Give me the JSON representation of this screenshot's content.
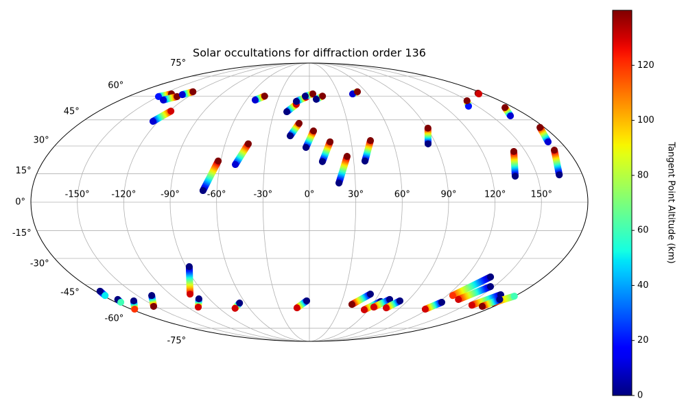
{
  "chart_data": {
    "type": "scatter",
    "projection": "mollweide",
    "title": "Solar occultations for diffraction order 136",
    "xticks": [
      {
        "value": -150,
        "label": "-150°"
      },
      {
        "value": -120,
        "label": "-120°"
      },
      {
        "value": -90,
        "label": "-90°"
      },
      {
        "value": -60,
        "label": "-60°"
      },
      {
        "value": -30,
        "label": "-30°"
      },
      {
        "value": 0,
        "label": "0°"
      },
      {
        "value": 30,
        "label": "30°"
      },
      {
        "value": 60,
        "label": "60°"
      },
      {
        "value": 90,
        "label": "90°"
      },
      {
        "value": 120,
        "label": "120°"
      },
      {
        "value": 150,
        "label": "150°"
      }
    ],
    "yticks": [
      {
        "value": -75,
        "label": "-75°"
      },
      {
        "value": -60,
        "label": "-60°"
      },
      {
        "value": -45,
        "label": "-45°"
      },
      {
        "value": -30,
        "label": "-30°"
      },
      {
        "value": -15,
        "label": "-15°"
      },
      {
        "value": 0,
        "label": "0°"
      },
      {
        "value": 15,
        "label": "15°"
      },
      {
        "value": 30,
        "label": "30°"
      },
      {
        "value": 45,
        "label": "45°"
      },
      {
        "value": 60,
        "label": "60°"
      },
      {
        "value": 75,
        "label": "75°"
      }
    ],
    "xlim": [
      -180,
      180
    ],
    "ylim": [
      -90,
      90
    ],
    "grid": true,
    "colorbar": {
      "label": "Tangent Point Altitude (km)",
      "colormap": "jet",
      "lim": [
        0,
        140
      ],
      "ticks": [
        0,
        20,
        40,
        60,
        80,
        100,
        120
      ]
    },
    "tracks": [
      {
        "lon": [
          -149.8,
          -141.9
        ],
        "lat": [
          59.7,
          61.5
        ],
        "alt": [
          20,
          140
        ]
      },
      {
        "lon": [
          -139.1,
          -131.4
        ],
        "lat": [
          57.4,
          59.7
        ],
        "alt": [
          10,
          140
        ]
      },
      {
        "lon": [
          -129.4,
          -123.7
        ],
        "lat": [
          61.0,
          63.0
        ],
        "alt": [
          10,
          140
        ]
      },
      {
        "lon": [
          -124.2,
          -118.4
        ],
        "lat": [
          44.1,
          50.3
        ],
        "alt": [
          10,
          130
        ]
      },
      {
        "lon": [
          -69.0,
          -61.7
        ],
        "lat": [
          6.1,
          21.8
        ],
        "alt": [
          0,
          140
        ]
      },
      {
        "lon": [
          -49.7,
          -43.5
        ],
        "lat": [
          19.9,
          31.2
        ],
        "alt": [
          10,
          140
        ]
      },
      {
        "lon": [
          -51.6,
          -44.7
        ],
        "lat": [
          57.4,
          60
        ],
        "alt": [
          10,
          140
        ]
      },
      {
        "lon": [
          -19.2,
          -11.9
        ],
        "lat": [
          49.9,
          54.6
        ],
        "alt": [
          0,
          130
        ]
      },
      {
        "lon": [
          -12.2,
          -3.4
        ],
        "lat": [
          56.5,
          59.2
        ],
        "alt": [
          0,
          130
        ]
      },
      {
        "lon": [
          -4.1,
          3.5
        ],
        "lat": [
          60,
          61.5
        ],
        "alt": [
          0,
          140
        ]
      },
      {
        "lon": [
          6.6,
          13.1
        ],
        "lat": [
          57.9,
          60
        ],
        "alt": [
          0,
          140
        ]
      },
      {
        "lon": [
          -14.1,
          -8.1
        ],
        "lat": [
          35.7,
          42.9
        ],
        "alt": [
          0,
          140
        ]
      },
      {
        "lon": [
          -2.4,
          3.1
        ],
        "lat": [
          29.2,
          38.5
        ],
        "alt": [
          0,
          140
        ]
      },
      {
        "lon": [
          8.8,
          14.8
        ],
        "lat": [
          21.5,
          32.3
        ],
        "alt": [
          0,
          140
        ]
      },
      {
        "lon": [
          19.3,
          25.8
        ],
        "lat": [
          10.1,
          24.3
        ],
        "alt": [
          0,
          140
        ]
      },
      {
        "lon": [
          37.6,
          44.0
        ],
        "lat": [
          21.8,
          33.0
        ],
        "alt": [
          0,
          140
        ]
      },
      {
        "lon": [
          44.5,
          51.0
        ],
        "lat": [
          61.5,
          63.0
        ],
        "alt": [
          10,
          140
        ]
      },
      {
        "lon": [
          84.5,
          90.5
        ],
        "lat": [
          31.2,
          40.1
        ],
        "alt": [
          0,
          140
        ]
      },
      {
        "lon": [
          142.1,
          148.8
        ],
        "lat": [
          53.4,
          56.9
        ],
        "alt": [
          20,
          140
        ]
      },
      {
        "lon": [
          175.3,
          174.4
        ],
        "lat": [
          62.0,
          61.5
        ],
        "alt": [
          140,
          130
        ]
      },
      {
        "lon": [
          165.7,
          172.4
        ],
        "lat": [
          47.4,
          52.5
        ],
        "alt": [
          10,
          140
        ]
      },
      {
        "lon": [
          171.2,
          176.7
        ],
        "lat": [
          32.3,
          40.5
        ],
        "alt": [
          10,
          140
        ]
      },
      {
        "lon": [
          135.4,
          141.9
        ],
        "lat": [
          13.7,
          27.0
        ],
        "alt": [
          0,
          140
        ]
      },
      {
        "lon": [
          164.7,
          170.7
        ],
        "lat": [
          14.4,
          27.7
        ],
        "alt": [
          0,
          140
        ]
      },
      {
        "lon": [
          -176.0,
          -178.0
        ],
        "lat": [
          -49.0,
          -51.7
        ],
        "alt": [
          0,
          50
        ]
      },
      {
        "lon": [
          -173.2,
          -175.4
        ],
        "lat": [
          -54.2,
          -56.0
        ],
        "alt": [
          0,
          60
        ]
      },
      {
        "lon": [
          -161.0,
          -176.6
        ],
        "lat": [
          -55.1,
          -60.6
        ],
        "alt": [
          0,
          120
        ]
      },
      {
        "lon": [
          -137.4,
          -151.8
        ],
        "lat": [
          -51.7,
          -58.7
        ],
        "alt": [
          0,
          140
        ]
      },
      {
        "lon": [
          -87.6,
          -102.7
        ],
        "lat": [
          -34.6,
          -50.8
        ],
        "alt": [
          0,
          130
        ]
      },
      {
        "lon": [
          -99.3,
          -109.3
        ],
        "lat": [
          -53.8,
          -59.2
        ],
        "alt": [
          0,
          130
        ]
      },
      {
        "lon": [
          -65.5,
          -74.2
        ],
        "lat": [
          -56.5,
          -60
        ],
        "alt": [
          0,
          130
        ]
      },
      {
        "lon": [
          -2.5,
          -12.3
        ],
        "lat": [
          -55.1,
          -59.7
        ],
        "alt": [
          0,
          130
        ]
      },
      {
        "lon": [
          52.5,
          40.5
        ],
        "lat": [
          -50.8,
          -57.4
        ],
        "alt": [
          0,
          140
        ]
      },
      {
        "lon": [
          65.9,
          55.9
        ],
        "lat": [
          -55.5,
          -61.0
        ],
        "alt": [
          0,
          130
        ]
      },
      {
        "lon": [
          72.6,
          63.4
        ],
        "lat": [
          -54.2,
          -59.2
        ],
        "alt": [
          0,
          130
        ]
      },
      {
        "lon": [
          83.0,
          76.3
        ],
        "lat": [
          -55.1,
          -59.7
        ],
        "alt": [
          0,
          130
        ]
      },
      {
        "lon": [
          123.1,
          117.1
        ],
        "lat": [
          -56.0,
          -60.6
        ],
        "alt": [
          0,
          130
        ]
      },
      {
        "lon": [
          138.8,
          124.9
        ],
        "lat": [
          -40.5,
          -51.7
        ],
        "alt": [
          0,
          120
        ]
      },
      {
        "lon": [
          147.2,
          134.7
        ],
        "lat": [
          -46.2,
          -54.2
        ],
        "alt": [
          0,
          130
        ]
      },
      {
        "lon": [
          165.6,
          156.1
        ],
        "lat": [
          -51.2,
          -57.9
        ],
        "alt": [
          0,
          130
        ]
      },
      {
        "lon": [
          179.6,
          171.5
        ],
        "lat": [
          -52.1,
          -56.5
        ],
        "alt": [
          60,
          130
        ]
      },
      {
        "lon": [
          172.0,
          168.5
        ],
        "lat": [
          -54.2,
          -58.7
        ],
        "alt": [
          0,
          140
        ]
      }
    ]
  }
}
